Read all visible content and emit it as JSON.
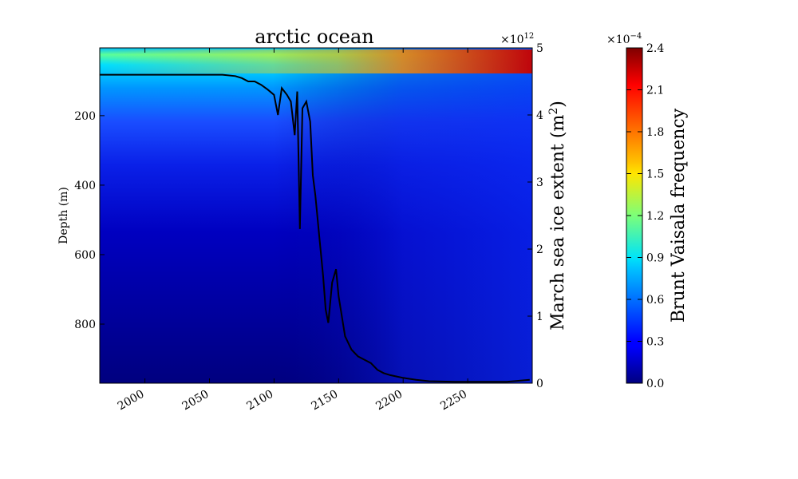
{
  "chart_data": {
    "type": "heatmap",
    "title": "arctic ocean",
    "x_range": [
      1965,
      2300
    ],
    "x_ticks": [
      "2000",
      "2050",
      "2100",
      "2150",
      "2200",
      "2250"
    ],
    "depth_axis": {
      "label": "Depth (m)",
      "range": [
        970,
        5
      ],
      "ticks": [
        "200",
        "400",
        "600",
        "800"
      ]
    },
    "ice_axis": {
      "label_prefix": "March sea ice extent (m",
      "label_sup": "2",
      "label_suffix": ")",
      "multiplier_base": "×10",
      "multiplier_exp": "12",
      "range": [
        0,
        5
      ],
      "ticks": [
        "0",
        "1",
        "2",
        "3",
        "4",
        "5"
      ]
    },
    "colorbar": {
      "label": "Brunt Vaisala frequency",
      "multiplier_base": "×10",
      "multiplier_exp": "−4",
      "range": [
        0,
        2.4
      ],
      "ticks": [
        "0.0",
        "0.3",
        "0.6",
        "0.9",
        "1.2",
        "1.5",
        "1.8",
        "2.1",
        "2.4"
      ],
      "colormap": "jet"
    },
    "series": [
      {
        "type": "line",
        "color": "#000000",
        "years": [
          1965,
          2000,
          2040,
          2060,
          2070,
          2075,
          2080,
          2085,
          2090,
          2095,
          2100,
          2103,
          2106,
          2110,
          2113,
          2116,
          2118,
          2120,
          2122,
          2125,
          2128,
          2130,
          2132,
          2135,
          2138,
          2140,
          2142,
          2145,
          2148,
          2150,
          2155,
          2160,
          2165,
          2170,
          2175,
          2180,
          2185,
          2190,
          2195,
          2200,
          2210,
          2220,
          2240,
          2260,
          2280,
          2298
        ],
        "ice_extent": [
          4.6,
          4.6,
          4.6,
          4.6,
          4.58,
          4.55,
          4.5,
          4.5,
          4.45,
          4.38,
          4.3,
          4.0,
          4.4,
          4.3,
          4.2,
          3.7,
          4.35,
          2.3,
          4.1,
          4.2,
          3.9,
          3.1,
          2.8,
          2.2,
          1.6,
          1.1,
          0.9,
          1.5,
          1.7,
          1.3,
          0.7,
          0.5,
          0.4,
          0.35,
          0.3,
          0.2,
          0.15,
          0.12,
          0.1,
          0.08,
          0.05,
          0.03,
          0.02,
          0.02,
          0.02,
          0.05
        ]
      }
    ]
  }
}
